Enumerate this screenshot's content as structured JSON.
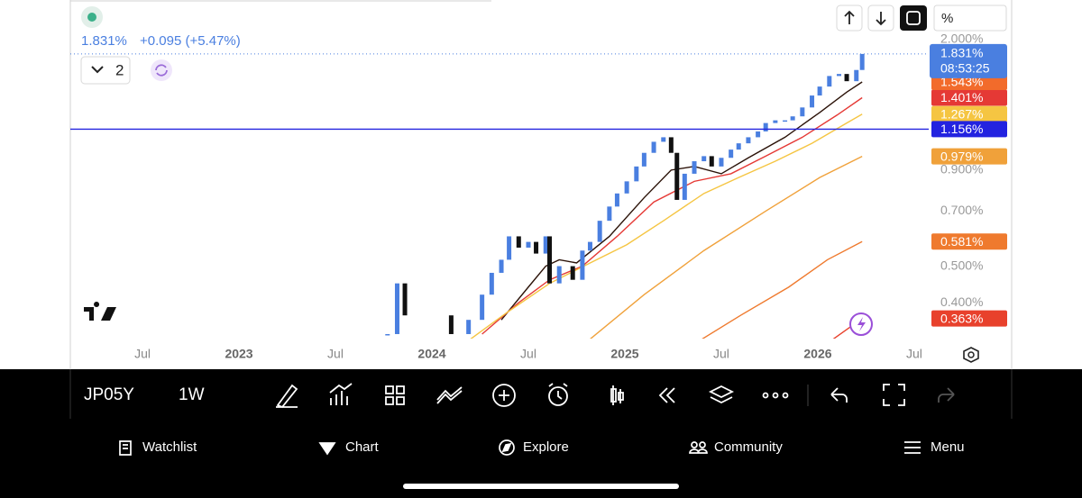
{
  "ui": {
    "header": {
      "price": "1.831%",
      "change": "+0.095 (+5.47%)",
      "layout_count": "2",
      "scale_mode": "%"
    },
    "toolbar": {
      "symbol": "JP05Y",
      "interval": "1W"
    },
    "nav": [
      "Watchlist",
      "Chart",
      "Explore",
      "Community",
      "Menu"
    ]
  },
  "chart_data": {
    "type": "candlestick",
    "log_scale": true,
    "grid": false,
    "xlim": [
      2022.126,
      2026.575
    ],
    "ylim": [
      0.321,
      2.066
    ],
    "xticks": [
      {
        "value": 2022.5,
        "label": "Jul"
      },
      2023,
      {
        "value": 2023.5,
        "label": "Jul"
      },
      2024,
      {
        "value": 2024.5,
        "label": "Jul"
      },
      2025,
      {
        "value": 2025.5,
        "label": "Jul"
      },
      2026,
      {
        "value": 2026.5,
        "label": "Jul"
      }
    ],
    "yticks": [
      {
        "value": 2.0,
        "label": "2.000%"
      },
      {
        "value": 0.9,
        "label": "0.900%"
      },
      {
        "value": 0.7,
        "label": "0.700%"
      },
      {
        "value": 0.5,
        "label": "0.500%"
      },
      {
        "value": 0.4,
        "label": "0.400%"
      }
    ],
    "countdown": "08:53:25",
    "hline": {
      "value": 1.156,
      "label": "1.156%",
      "color": "#2323e0"
    },
    "series": [
      {
        "up_color": "#4a7fe0",
        "down_color": "#111111",
        "label_color": "#4a7fe0",
        "last_label": "1.831%",
        "x": [
          2023.77,
          2023.82,
          2023.86,
          2024.1,
          2024.19,
          2024.26,
          2024.31,
          2024.36,
          2024.4,
          2024.45,
          2024.5,
          2024.54,
          2024.59,
          2024.61,
          2024.66,
          2024.73,
          2024.78,
          2024.82,
          2024.87,
          2024.92,
          2024.96,
          2025.01,
          2025.06,
          2025.1,
          2025.15,
          2025.2,
          2025.24,
          2025.27,
          2025.31,
          2025.36,
          2025.41,
          2025.45,
          2025.5,
          2025.55,
          2025.59,
          2025.64,
          2025.69,
          2025.73,
          2025.78,
          2025.83,
          2025.87,
          2025.92,
          2025.97,
          2026.01,
          2026.06,
          2026.11,
          2026.15,
          2026.2,
          2026.23
        ],
        "values": [
          0.33,
          0.45,
          0.37,
          0.33,
          0.36,
          0.42,
          0.48,
          0.52,
          0.6,
          0.56,
          0.58,
          0.54,
          0.6,
          0.45,
          0.5,
          0.46,
          0.55,
          0.58,
          0.66,
          0.72,
          0.78,
          0.84,
          0.92,
          1.0,
          1.07,
          1.1,
          1.0,
          0.75,
          0.88,
          0.95,
          0.98,
          0.92,
          0.97,
          1.02,
          1.06,
          1.1,
          1.14,
          1.2,
          1.22,
          1.22,
          1.25,
          1.32,
          1.42,
          1.5,
          1.6,
          1.62,
          1.55,
          1.66,
          1.831
        ]
      },
      {
        "color": "#2b1208",
        "label_color": "#f26b2b",
        "last_label": "1.543%",
        "x": [
          2024.36,
          2024.5,
          2024.59,
          2024.66,
          2024.75,
          2024.92,
          2025.1,
          2025.24,
          2025.36,
          2025.5,
          2025.64,
          2025.83,
          2026.01,
          2026.15,
          2026.23
        ],
        "values": [
          0.36,
          0.44,
          0.5,
          0.52,
          0.51,
          0.6,
          0.76,
          0.9,
          0.92,
          0.88,
          0.97,
          1.1,
          1.28,
          1.45,
          1.543
        ]
      },
      {
        "color": "#e53935",
        "label_color": "#e53935",
        "last_label": "1.401%",
        "x": [
          2024.26,
          2024.45,
          2024.61,
          2024.78,
          2024.96,
          2025.15,
          2025.36,
          2025.55,
          2025.73,
          2025.92,
          2026.1,
          2026.23
        ],
        "values": [
          0.33,
          0.4,
          0.46,
          0.5,
          0.6,
          0.74,
          0.84,
          0.88,
          0.98,
          1.1,
          1.26,
          1.401
        ]
      },
      {
        "color": "#f5c542",
        "label_color": "#f5c542",
        "last_label": "1.267%",
        "x": [
          2024.2,
          2024.4,
          2024.61,
          2024.82,
          2025.01,
          2025.2,
          2025.41,
          2025.59,
          2025.78,
          2025.97,
          2026.15,
          2026.23
        ],
        "values": [
          0.32,
          0.38,
          0.45,
          0.51,
          0.57,
          0.66,
          0.78,
          0.86,
          0.95,
          1.06,
          1.2,
          1.267
        ]
      },
      {
        "color": "#f0a13a",
        "label_color": "#f0a13a",
        "last_label": "0.979%",
        "x": [
          2024.82,
          2025.1,
          2025.41,
          2025.73,
          2026.01,
          2026.23
        ],
        "values": [
          0.32,
          0.42,
          0.55,
          0.7,
          0.86,
          0.979
        ]
      },
      {
        "color": "#ef7a2e",
        "label_color": "#ef7a2e",
        "last_label": "0.581%",
        "x": [
          2025.4,
          2025.6,
          2025.85,
          2026.05,
          2026.23
        ],
        "values": [
          0.32,
          0.37,
          0.44,
          0.52,
          0.581
        ]
      },
      {
        "color": "#e8412c",
        "label_color": "#e8412c",
        "last_label": "0.363%",
        "x": [
          2026.08,
          2026.23
        ],
        "values": [
          0.32,
          0.363
        ]
      }
    ]
  }
}
